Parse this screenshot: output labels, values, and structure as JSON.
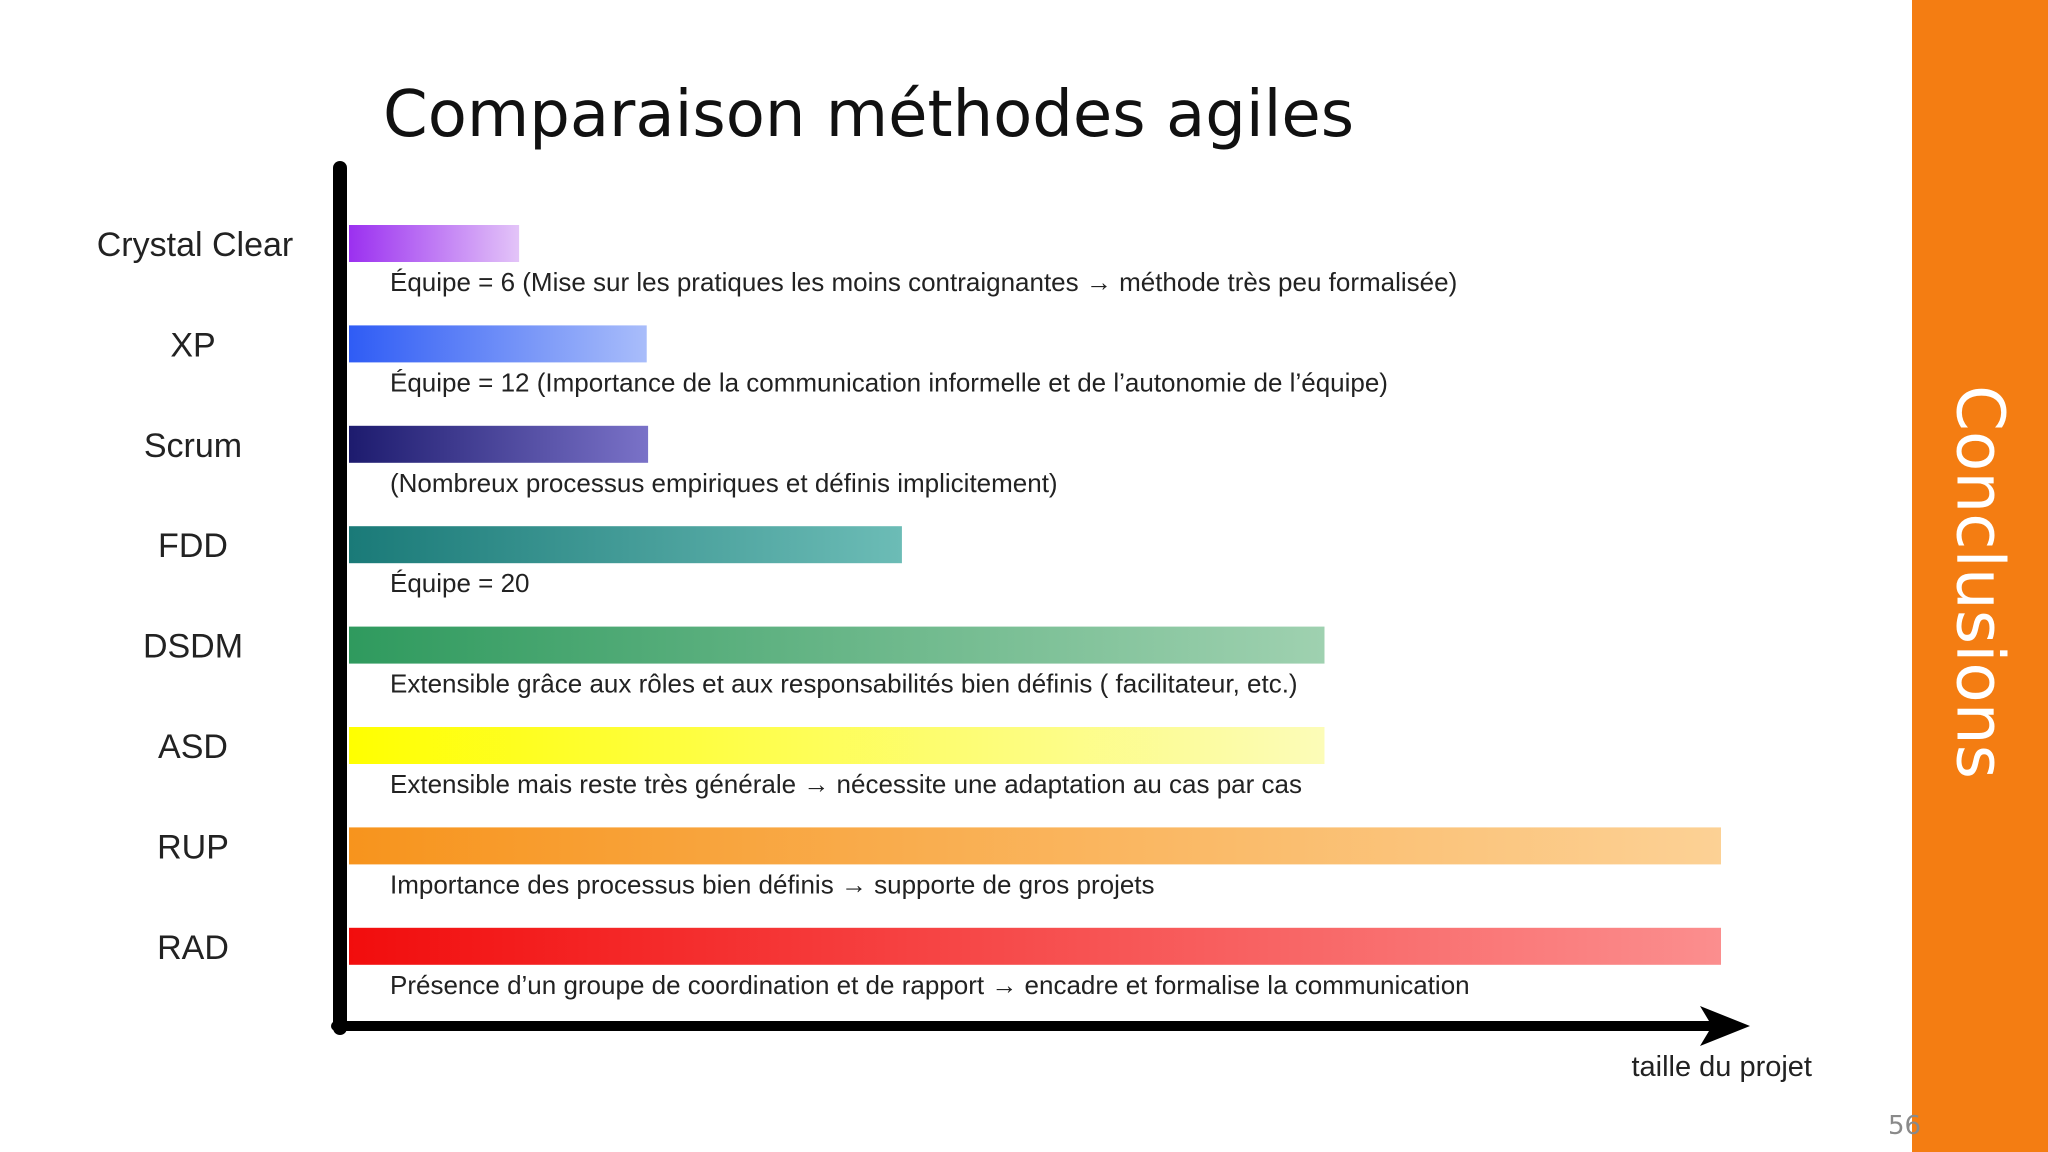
{
  "slide": {
    "title": "Comparaison méthodes agiles",
    "section_label": "Conclusions",
    "page_number": "56"
  },
  "colors": {
    "accent": "#f47d12",
    "axis": "#000000"
  },
  "chart_data": {
    "type": "bar",
    "orientation": "horizontal",
    "title": "Comparaison méthodes agiles",
    "xlabel": "taille du projet",
    "ylabel": "",
    "xlim": [
      0,
      100
    ],
    "categories": [
      "Crystal Clear",
      "XP",
      "Scrum",
      "FDD",
      "DSDM",
      "ASD",
      "RUP",
      "RAD"
    ],
    "values": [
      12.4,
      21.7,
      21.8,
      40.3,
      71.1,
      71.1,
      100,
      100
    ],
    "descriptions": [
      "Équipe = 6 (Mise sur les pratiques les moins contraignantes → méthode très peu formalisée)",
      "Équipe = 12 (Importance de la communication informelle et de l’autonomie de l’équipe)",
      "(Nombreux processus empiriques et définis implicitement)",
      "Équipe = 20",
      "Extensible grâce aux rôles et aux responsabilités bien définis ( facilitateur, etc.)",
      "Extensible mais reste très générale → nécessite une adaptation au cas par cas",
      "Importance des processus bien définis  → supporte de gros projets",
      "Présence d’un groupe de coordination et de rapport → encadre et formalise la communication"
    ],
    "bar_colors": [
      [
        "#9b30f0",
        "#e3c4f8"
      ],
      [
        "#2f5cf5",
        "#a9bdfa"
      ],
      [
        "#1d1b6e",
        "#7a72c8"
      ],
      [
        "#1a7a78",
        "#6cbcb6"
      ],
      [
        "#2f9a5e",
        "#9fd1b0"
      ],
      [
        "#ffff00",
        "#fcfcb8"
      ],
      [
        "#f7941d",
        "#fcd195"
      ],
      [
        "#f20d0d",
        "#fb8e8e"
      ]
    ],
    "grid": false,
    "legend": "none"
  }
}
